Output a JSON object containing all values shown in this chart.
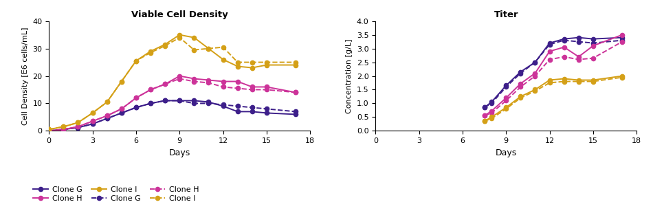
{
  "title_left": "Viable Cell Density",
  "title_right": "Titer",
  "ylabel_left": "Cell Density [E6 cells/mL]",
  "ylabel_right": "Concentration [g/L]",
  "xlabel": "Days",
  "colors": {
    "clone_g": "#3d1f8a",
    "clone_h": "#cc3399",
    "clone_i": "#d4a017"
  },
  "vcd": {
    "clone_g_solid": {
      "x": [
        0,
        1,
        2,
        3,
        4,
        5,
        6,
        7,
        8,
        9,
        10,
        11,
        12,
        13,
        14,
        15,
        17
      ],
      "y": [
        0,
        0.5,
        1.2,
        2.5,
        4.5,
        6.5,
        8.5,
        10,
        11,
        11,
        11,
        10.5,
        9,
        7,
        7,
        6.5,
        6
      ]
    },
    "clone_g_dash": {
      "x": [
        0,
        1,
        2,
        3,
        4,
        5,
        6,
        7,
        8,
        9,
        10,
        11,
        12,
        13,
        14,
        15,
        17
      ],
      "y": [
        0,
        0.5,
        1.2,
        2.5,
        4.5,
        6.5,
        8.5,
        10,
        11,
        11,
        10,
        10,
        9.5,
        9,
        8.5,
        8,
        7
      ]
    },
    "clone_h_solid": {
      "x": [
        0,
        1,
        2,
        3,
        4,
        5,
        6,
        7,
        8,
        9,
        10,
        11,
        12,
        13,
        14,
        15,
        17
      ],
      "y": [
        0,
        0.5,
        1.5,
        3.5,
        5.5,
        8,
        12,
        15,
        17,
        20,
        19,
        18.5,
        18,
        18,
        16,
        16,
        14
      ]
    },
    "clone_h_dash": {
      "x": [
        0,
        1,
        2,
        3,
        4,
        5,
        6,
        7,
        8,
        9,
        10,
        11,
        12,
        13,
        14,
        15,
        17
      ],
      "y": [
        0,
        0.5,
        1.5,
        3.5,
        5.5,
        8,
        12,
        15,
        17,
        19,
        18,
        17.5,
        16,
        15.5,
        15,
        15,
        14
      ]
    },
    "clone_i_solid": {
      "x": [
        0,
        1,
        2,
        3,
        4,
        5,
        6,
        7,
        8,
        9,
        10,
        11,
        12,
        13,
        14,
        15,
        17
      ],
      "y": [
        0.5,
        1.5,
        3,
        6.5,
        10.5,
        18,
        25.5,
        29,
        31.5,
        35,
        34,
        30,
        26,
        23.5,
        23,
        24,
        24
      ]
    },
    "clone_i_dash": {
      "x": [
        0,
        1,
        2,
        3,
        4,
        5,
        6,
        7,
        8,
        9,
        10,
        11,
        12,
        13,
        14,
        15,
        17
      ],
      "y": [
        0.5,
        1.5,
        3,
        6.5,
        10.5,
        18,
        25.5,
        28.5,
        31,
        34,
        29.5,
        30,
        30.5,
        25,
        25,
        25,
        25
      ]
    }
  },
  "titer": {
    "clone_g_solid": {
      "x": [
        7.5,
        8,
        9,
        10,
        11,
        12,
        13,
        14,
        15,
        17
      ],
      "y": [
        0.85,
        1.05,
        1.65,
        2.15,
        2.5,
        3.2,
        3.35,
        3.4,
        3.35,
        3.4
      ]
    },
    "clone_g_dash": {
      "x": [
        7.5,
        8,
        9,
        10,
        11,
        12,
        13,
        14,
        15,
        17
      ],
      "y": [
        0.85,
        1.0,
        1.6,
        2.1,
        2.5,
        3.15,
        3.3,
        3.25,
        3.2,
        3.3
      ]
    },
    "clone_h_solid": {
      "x": [
        7.5,
        8,
        9,
        10,
        11,
        12,
        13,
        14,
        15,
        17
      ],
      "y": [
        0.55,
        0.72,
        1.2,
        1.72,
        2.1,
        2.9,
        3.05,
        2.7,
        3.1,
        3.5
      ]
    },
    "clone_h_dash": {
      "x": [
        7.5,
        8,
        9,
        10,
        11,
        12,
        13,
        14,
        15,
        17
      ],
      "y": [
        0.55,
        0.65,
        1.1,
        1.6,
        2.0,
        2.6,
        2.7,
        2.6,
        2.65,
        3.25
      ]
    },
    "clone_i_solid": {
      "x": [
        7.5,
        8,
        9,
        10,
        11,
        12,
        13,
        14,
        15,
        17
      ],
      "y": [
        0.35,
        0.5,
        0.85,
        1.25,
        1.5,
        1.85,
        1.9,
        1.85,
        1.85,
        2.0
      ]
    },
    "clone_i_dash": {
      "x": [
        7.5,
        8,
        9,
        10,
        11,
        12,
        13,
        14,
        15,
        17
      ],
      "y": [
        0.35,
        0.45,
        0.8,
        1.2,
        1.45,
        1.75,
        1.8,
        1.8,
        1.8,
        1.95
      ]
    }
  },
  "ylim_left": [
    0,
    40
  ],
  "ylim_right": [
    0,
    4.0
  ],
  "xlim": [
    0,
    18
  ],
  "xticks": [
    0,
    3,
    6,
    9,
    12,
    15,
    18
  ],
  "yticks_right": [
    0,
    0.5,
    1.0,
    1.5,
    2.0,
    2.5,
    3.0,
    3.5,
    4.0
  ]
}
